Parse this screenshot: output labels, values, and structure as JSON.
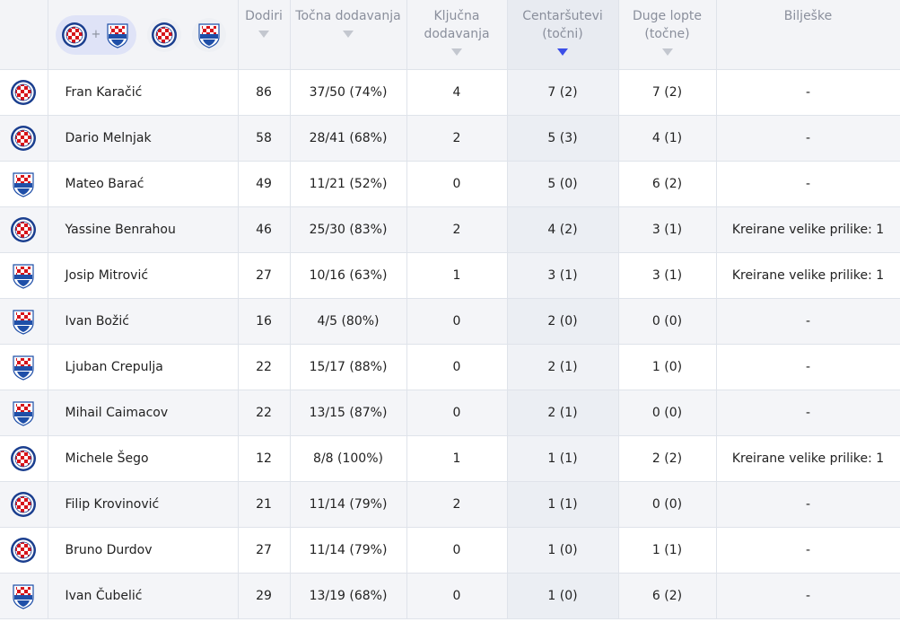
{
  "headers": {
    "touches": "Dodiri",
    "accurate_passes": "Točna dodavanja",
    "key_passes": "Ključna dodavanja",
    "crosses": "Centaršutevi (točni)",
    "long_balls": "Duge lopte (točne)",
    "notes": "Bilješke"
  },
  "team_filter": {
    "plus": "+"
  },
  "rows": [
    {
      "team": "hajduk",
      "name": "Fran Karačić",
      "touches": "86",
      "passes": "37/50 (74%)",
      "key": "4",
      "crosses": "7 (2)",
      "long": "7 (2)",
      "notes": "-"
    },
    {
      "team": "hajduk",
      "name": "Dario Melnjak",
      "touches": "58",
      "passes": "28/41 (68%)",
      "key": "2",
      "crosses": "5 (3)",
      "long": "4 (1)",
      "notes": "-"
    },
    {
      "team": "slaven",
      "name": "Mateo Barać",
      "touches": "49",
      "passes": "11/21 (52%)",
      "key": "0",
      "crosses": "5 (0)",
      "long": "6 (2)",
      "notes": "-"
    },
    {
      "team": "hajduk",
      "name": "Yassine Benrahou",
      "touches": "46",
      "passes": "25/30 (83%)",
      "key": "2",
      "crosses": "4 (2)",
      "long": "3 (1)",
      "notes": "Kreirane velike prilike: 1"
    },
    {
      "team": "slaven",
      "name": "Josip Mitrović",
      "touches": "27",
      "passes": "10/16 (63%)",
      "key": "1",
      "crosses": "3 (1)",
      "long": "3 (1)",
      "notes": "Kreirane velike prilike: 1"
    },
    {
      "team": "slaven",
      "name": "Ivan Božić",
      "touches": "16",
      "passes": "4/5 (80%)",
      "key": "0",
      "crosses": "2 (0)",
      "long": "0 (0)",
      "notes": "-"
    },
    {
      "team": "slaven",
      "name": "Ljuban Crepulja",
      "touches": "22",
      "passes": "15/17 (88%)",
      "key": "0",
      "crosses": "2 (1)",
      "long": "1 (0)",
      "notes": "-"
    },
    {
      "team": "slaven",
      "name": "Mihail Caimacov",
      "touches": "22",
      "passes": "13/15 (87%)",
      "key": "0",
      "crosses": "2 (1)",
      "long": "0 (0)",
      "notes": "-"
    },
    {
      "team": "hajduk",
      "name": "Michele Šego",
      "touches": "12",
      "passes": "8/8 (100%)",
      "key": "1",
      "crosses": "1 (1)",
      "long": "2 (2)",
      "notes": "Kreirane velike prilike: 1"
    },
    {
      "team": "hajduk",
      "name": "Filip Krovinović",
      "touches": "21",
      "passes": "11/14 (79%)",
      "key": "2",
      "crosses": "1 (1)",
      "long": "0 (0)",
      "notes": "-"
    },
    {
      "team": "hajduk",
      "name": "Bruno Durdov",
      "touches": "27",
      "passes": "11/14 (79%)",
      "key": "0",
      "crosses": "1 (0)",
      "long": "1 (1)",
      "notes": "-"
    },
    {
      "team": "slaven",
      "name": "Ivan Čubelić",
      "touches": "29",
      "passes": "13/19 (68%)",
      "key": "0",
      "crosses": "1 (0)",
      "long": "6 (2)",
      "notes": "-"
    }
  ],
  "colors": {
    "header_bg": "#f3f4f7",
    "sort_active": "#3b4ee8",
    "filter_pill": "#dfe3f7",
    "hajduk_blue": "#1b3f8f",
    "hajduk_red": "#d7141a",
    "slaven_blue": "#1f4fa8"
  }
}
